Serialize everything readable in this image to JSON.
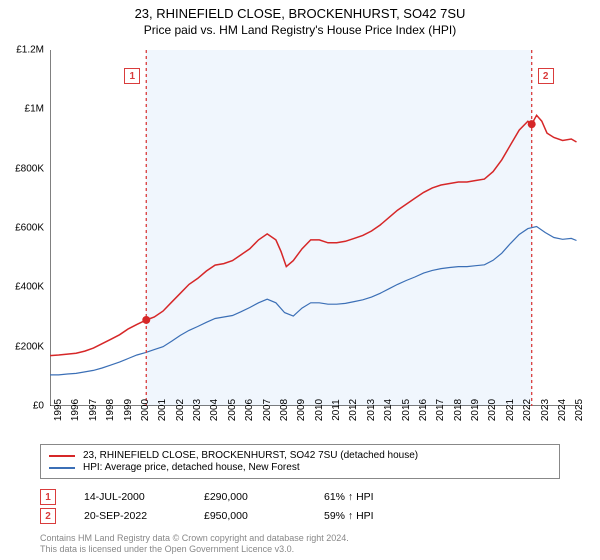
{
  "title": {
    "main": "23, RHINEFIELD CLOSE, BROCKENHURST, SO42 7SU",
    "sub": "Price paid vs. HM Land Registry's House Price Index (HPI)"
  },
  "chart": {
    "type": "line",
    "background_color": "#ffffff",
    "shaded_color": "#f0f6fd",
    "xlim": [
      1995,
      2025.5
    ],
    "ylim": [
      0,
      1200000
    ],
    "y_ticks": [
      {
        "v": 0,
        "label": "£0"
      },
      {
        "v": 200000,
        "label": "£200K"
      },
      {
        "v": 400000,
        "label": "£400K"
      },
      {
        "v": 600000,
        "label": "£600K"
      },
      {
        "v": 800000,
        "label": "£800K"
      },
      {
        "v": 1000000,
        "label": "£1M"
      },
      {
        "v": 1200000,
        "label": "£1.2M"
      }
    ],
    "x_ticks": [
      1995,
      1996,
      1997,
      1998,
      1999,
      2000,
      2001,
      2002,
      2003,
      2004,
      2005,
      2006,
      2007,
      2008,
      2009,
      2010,
      2011,
      2012,
      2013,
      2014,
      2015,
      2016,
      2017,
      2018,
      2019,
      2020,
      2021,
      2022,
      2023,
      2024,
      2025
    ],
    "shaded_range": [
      2000.54,
      2022.72
    ],
    "series": [
      {
        "name": "price_paid",
        "label": "23, RHINEFIELD CLOSE, BROCKENHURST, SO42 7SU (detached house)",
        "color": "#d62728",
        "width": 1.5,
        "points": [
          [
            1995.0,
            170000
          ],
          [
            1995.5,
            172000
          ],
          [
            1996.0,
            175000
          ],
          [
            1996.5,
            178000
          ],
          [
            1997.0,
            185000
          ],
          [
            1997.5,
            195000
          ],
          [
            1998.0,
            210000
          ],
          [
            1998.5,
            225000
          ],
          [
            1999.0,
            240000
          ],
          [
            1999.5,
            260000
          ],
          [
            2000.0,
            275000
          ],
          [
            2000.54,
            290000
          ],
          [
            2001.0,
            300000
          ],
          [
            2001.5,
            320000
          ],
          [
            2002.0,
            350000
          ],
          [
            2002.5,
            380000
          ],
          [
            2003.0,
            410000
          ],
          [
            2003.5,
            430000
          ],
          [
            2004.0,
            455000
          ],
          [
            2004.5,
            475000
          ],
          [
            2005.0,
            480000
          ],
          [
            2005.5,
            490000
          ],
          [
            2006.0,
            510000
          ],
          [
            2006.5,
            530000
          ],
          [
            2007.0,
            560000
          ],
          [
            2007.5,
            580000
          ],
          [
            2008.0,
            560000
          ],
          [
            2008.3,
            520000
          ],
          [
            2008.6,
            470000
          ],
          [
            2009.0,
            490000
          ],
          [
            2009.5,
            530000
          ],
          [
            2010.0,
            560000
          ],
          [
            2010.5,
            560000
          ],
          [
            2011.0,
            550000
          ],
          [
            2011.5,
            550000
          ],
          [
            2012.0,
            555000
          ],
          [
            2012.5,
            565000
          ],
          [
            2013.0,
            575000
          ],
          [
            2013.5,
            590000
          ],
          [
            2014.0,
            610000
          ],
          [
            2014.5,
            635000
          ],
          [
            2015.0,
            660000
          ],
          [
            2015.5,
            680000
          ],
          [
            2016.0,
            700000
          ],
          [
            2016.5,
            720000
          ],
          [
            2017.0,
            735000
          ],
          [
            2017.5,
            745000
          ],
          [
            2018.0,
            750000
          ],
          [
            2018.5,
            755000
          ],
          [
            2019.0,
            755000
          ],
          [
            2019.5,
            760000
          ],
          [
            2020.0,
            765000
          ],
          [
            2020.5,
            790000
          ],
          [
            2021.0,
            830000
          ],
          [
            2021.5,
            880000
          ],
          [
            2022.0,
            930000
          ],
          [
            2022.5,
            960000
          ],
          [
            2022.72,
            950000
          ],
          [
            2023.0,
            980000
          ],
          [
            2023.3,
            960000
          ],
          [
            2023.6,
            920000
          ],
          [
            2024.0,
            905000
          ],
          [
            2024.5,
            895000
          ],
          [
            2025.0,
            900000
          ],
          [
            2025.3,
            890000
          ]
        ]
      },
      {
        "name": "hpi",
        "label": "HPI: Average price, detached house, New Forest",
        "color": "#3b6fb6",
        "width": 1.2,
        "points": [
          [
            1995.0,
            105000
          ],
          [
            1995.5,
            105000
          ],
          [
            1996.0,
            108000
          ],
          [
            1996.5,
            110000
          ],
          [
            1997.0,
            115000
          ],
          [
            1997.5,
            120000
          ],
          [
            1998.0,
            128000
          ],
          [
            1998.5,
            138000
          ],
          [
            1999.0,
            148000
          ],
          [
            1999.5,
            160000
          ],
          [
            2000.0,
            172000
          ],
          [
            2000.5,
            180000
          ],
          [
            2001.0,
            190000
          ],
          [
            2001.5,
            200000
          ],
          [
            2002.0,
            218000
          ],
          [
            2002.5,
            238000
          ],
          [
            2003.0,
            255000
          ],
          [
            2003.5,
            268000
          ],
          [
            2004.0,
            282000
          ],
          [
            2004.5,
            295000
          ],
          [
            2005.0,
            300000
          ],
          [
            2005.5,
            305000
          ],
          [
            2006.0,
            318000
          ],
          [
            2006.5,
            332000
          ],
          [
            2007.0,
            348000
          ],
          [
            2007.5,
            360000
          ],
          [
            2008.0,
            348000
          ],
          [
            2008.5,
            315000
          ],
          [
            2009.0,
            303000
          ],
          [
            2009.5,
            330000
          ],
          [
            2010.0,
            348000
          ],
          [
            2010.5,
            348000
          ],
          [
            2011.0,
            343000
          ],
          [
            2011.5,
            343000
          ],
          [
            2012.0,
            346000
          ],
          [
            2012.5,
            352000
          ],
          [
            2013.0,
            358000
          ],
          [
            2013.5,
            367000
          ],
          [
            2014.0,
            380000
          ],
          [
            2014.5,
            395000
          ],
          [
            2015.0,
            410000
          ],
          [
            2015.5,
            423000
          ],
          [
            2016.0,
            435000
          ],
          [
            2016.5,
            448000
          ],
          [
            2017.0,
            457000
          ],
          [
            2017.5,
            463000
          ],
          [
            2018.0,
            467000
          ],
          [
            2018.5,
            470000
          ],
          [
            2019.0,
            470000
          ],
          [
            2019.5,
            473000
          ],
          [
            2020.0,
            476000
          ],
          [
            2020.5,
            491000
          ],
          [
            2021.0,
            515000
          ],
          [
            2021.5,
            548000
          ],
          [
            2022.0,
            578000
          ],
          [
            2022.5,
            598000
          ],
          [
            2023.0,
            605000
          ],
          [
            2023.5,
            585000
          ],
          [
            2024.0,
            568000
          ],
          [
            2024.5,
            562000
          ],
          [
            2025.0,
            565000
          ],
          [
            2025.3,
            558000
          ]
        ]
      }
    ],
    "markers": [
      {
        "num": "1",
        "x": 2000.54,
        "y": 290000,
        "date": "14-JUL-2000",
        "price": "£290,000",
        "hpi_delta": "61% ↑ HPI"
      },
      {
        "num": "2",
        "x": 2022.72,
        "y": 950000,
        "date": "20-SEP-2022",
        "price": "£950,000",
        "hpi_delta": "59% ↑ HPI"
      }
    ],
    "axis_fontsize": 10,
    "title_fontsize": 13
  },
  "footer": {
    "line1": "Contains HM Land Registry data © Crown copyright and database right 2024.",
    "line2": "This data is licensed under the Open Government Licence v3.0."
  }
}
